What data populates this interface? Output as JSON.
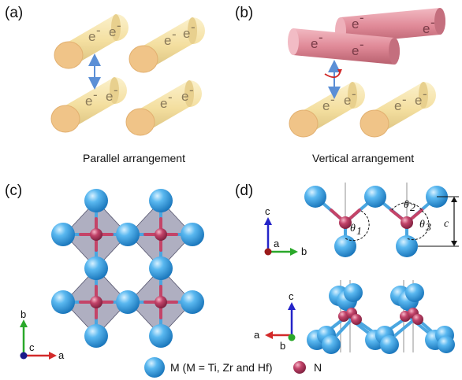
{
  "panels": {
    "a": {
      "label": "(a)",
      "caption": "Parallel arrangement"
    },
    "b": {
      "label": "(b)",
      "caption": "Vertical arrangement"
    },
    "c": {
      "label": "(c)"
    },
    "d": {
      "label": "(d)"
    }
  },
  "electron_label": "e",
  "electron_sup": "-",
  "axes": {
    "c_panel": {
      "x": "a",
      "y": "b",
      "z": "c"
    },
    "d_top": {
      "up": "c",
      "right": "b",
      "out": "a"
    },
    "d_bottom": {
      "up": "c",
      "left": "a",
      "down": "b"
    }
  },
  "angles": {
    "theta1": "θ",
    "theta1_sub": "1",
    "theta2": "θ",
    "theta2_sub": "2",
    "theta3": "θ",
    "theta3_sub": "3",
    "c_param": "c"
  },
  "legend": {
    "m_label": "M (M = Ti, Zr and Hf)",
    "n_label": "N"
  },
  "colors": {
    "metal": "#3aa0e0",
    "nitrogen": "#b8385c",
    "rod_yellow": "#f2dca0",
    "rod_pink": "#e08a98",
    "octahedron": "#6e6e8e"
  }
}
